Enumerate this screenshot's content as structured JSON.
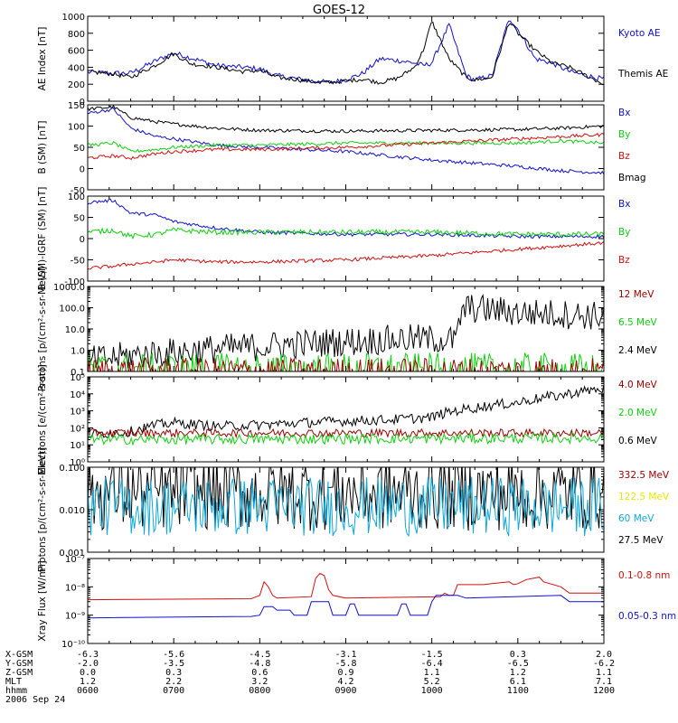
{
  "title": "GOES-12",
  "colors": {
    "black": "#000000",
    "blue": "#1010d0",
    "red": "#d01010",
    "green": "#10d010",
    "darkred": "#a00000",
    "cyan": "#10a8d8",
    "yellow": "#e8e800"
  },
  "chart_data": [
    {
      "type": "line",
      "ylabel": "AE Index [nT]",
      "scale": "linear",
      "ylim": [
        0,
        1000
      ],
      "ticks": [
        0,
        200,
        400,
        600,
        800,
        1000
      ],
      "tick_labels": [
        "0",
        "200",
        "400",
        "600",
        "800",
        "1000"
      ],
      "legend": [
        {
          "label": "Kyoto AE",
          "color": "#1010d0"
        },
        {
          "label": "Themis AE",
          "color": "#000000"
        }
      ],
      "series": [
        {
          "name": "Kyoto AE",
          "color": "#1010d0",
          "noise": 0.03,
          "x": [
            6.0,
            6.3,
            6.5,
            6.8,
            7.0,
            7.2,
            7.5,
            7.8,
            8.0,
            8.2,
            8.4,
            8.6,
            8.8,
            9.0,
            9.2,
            9.4,
            9.6,
            9.8,
            9.9,
            10.0,
            10.2,
            10.4,
            10.5,
            10.7,
            10.9,
            11.0,
            11.2,
            11.4,
            11.6,
            11.8,
            12.0
          ],
          "y": [
            340,
            330,
            330,
            480,
            570,
            510,
            420,
            400,
            380,
            300,
            270,
            240,
            220,
            250,
            330,
            500,
            480,
            450,
            420,
            450,
            900,
            300,
            250,
            300,
            980,
            850,
            500,
            450,
            350,
            300,
            260
          ]
        },
        {
          "name": "Themis AE",
          "color": "#000000",
          "noise": 0.025,
          "x": [
            6.0,
            6.3,
            6.5,
            6.8,
            7.0,
            7.2,
            7.5,
            7.8,
            8.0,
            8.2,
            8.4,
            8.6,
            8.8,
            9.0,
            9.2,
            9.4,
            9.6,
            9.8,
            9.9,
            10.0,
            10.2,
            10.4,
            10.5,
            10.7,
            10.9,
            11.0,
            11.2,
            11.4,
            11.6,
            11.8,
            12.0
          ],
          "y": [
            350,
            320,
            280,
            430,
            560,
            440,
            400,
            350,
            360,
            280,
            260,
            230,
            220,
            240,
            260,
            220,
            270,
            400,
            600,
            940,
            500,
            280,
            250,
            280,
            940,
            800,
            600,
            450,
            400,
            300,
            200
          ]
        }
      ]
    },
    {
      "type": "line",
      "ylabel": "B (SM) [nT]",
      "scale": "linear",
      "ylim": [
        -50,
        150
      ],
      "ticks": [
        -50,
        0,
        50,
        100,
        150
      ],
      "tick_labels": [
        "-50",
        "0",
        "50",
        "100",
        "150"
      ],
      "legend": [
        {
          "label": "Bx",
          "color": "#1010d0"
        },
        {
          "label": "By",
          "color": "#10d010"
        },
        {
          "label": "Bz",
          "color": "#d01010"
        },
        {
          "label": "Bmag",
          "color": "#000000"
        }
      ],
      "series": [
        {
          "name": "Bmag",
          "color": "#000000",
          "noise": 0.02,
          "x": [
            6.0,
            6.3,
            6.5,
            6.8,
            7.0,
            7.5,
            8.0,
            9.0,
            10.0,
            11.0,
            11.5,
            12.0
          ],
          "y": [
            140,
            145,
            120,
            110,
            105,
            95,
            90,
            88,
            90,
            92,
            95,
            100
          ]
        },
        {
          "name": "Bx",
          "color": "#1010d0",
          "noise": 0.02,
          "x": [
            6.0,
            6.3,
            6.5,
            6.8,
            7.0,
            7.5,
            8.0,
            9.0,
            10.0,
            11.0,
            11.5,
            12.0
          ],
          "y": [
            130,
            140,
            95,
            75,
            70,
            55,
            50,
            40,
            20,
            5,
            -5,
            -10
          ]
        },
        {
          "name": "By",
          "color": "#10d010",
          "noise": 0.02,
          "x": [
            6.0,
            6.3,
            6.5,
            6.8,
            7.0,
            7.5,
            8.0,
            9.0,
            10.0,
            11.0,
            11.5,
            12.0
          ],
          "y": [
            55,
            60,
            40,
            45,
            50,
            55,
            55,
            60,
            60,
            60,
            65,
            60
          ]
        },
        {
          "name": "Bz",
          "color": "#d01010",
          "noise": 0.02,
          "x": [
            6.0,
            6.3,
            6.5,
            6.8,
            7.0,
            7.5,
            8.0,
            9.0,
            10.0,
            11.0,
            11.5,
            12.0
          ],
          "y": [
            25,
            30,
            25,
            35,
            40,
            45,
            45,
            50,
            60,
            70,
            75,
            80
          ]
        }
      ]
    },
    {
      "type": "line",
      "ylabel": "B (SM)-IGRF (SM) [nT]",
      "scale": "linear",
      "ylim": [
        -100,
        100
      ],
      "ticks": [
        -100,
        -50,
        0,
        50,
        100
      ],
      "tick_labels": [
        "-100",
        "-50",
        "0",
        "50",
        "100"
      ],
      "legend": [
        {
          "label": "Bx",
          "color": "#1010d0"
        },
        {
          "label": "By",
          "color": "#10d010"
        },
        {
          "label": "Bz",
          "color": "#d01010"
        }
      ],
      "series": [
        {
          "name": "Bx",
          "color": "#1010d0",
          "noise": 0.02,
          "x": [
            6.0,
            6.3,
            6.5,
            6.8,
            7.0,
            7.5,
            8.0,
            9.0,
            10.0,
            11.0,
            12.0
          ],
          "y": [
            85,
            90,
            60,
            55,
            40,
            25,
            15,
            10,
            10,
            5,
            5
          ]
        },
        {
          "name": "By",
          "color": "#10d010",
          "noise": 0.03,
          "x": [
            6.0,
            6.3,
            6.5,
            6.8,
            7.0,
            7.5,
            8.0,
            9.0,
            10.0,
            11.0,
            12.0
          ],
          "y": [
            15,
            20,
            5,
            10,
            20,
            15,
            15,
            15,
            15,
            10,
            10
          ]
        },
        {
          "name": "Bz",
          "color": "#d01010",
          "noise": 0.02,
          "x": [
            6.0,
            6.3,
            6.5,
            6.8,
            7.0,
            7.5,
            8.0,
            9.0,
            10.0,
            11.0,
            12.0
          ],
          "y": [
            -70,
            -65,
            -60,
            -55,
            -50,
            -55,
            -55,
            -50,
            -40,
            -25,
            -10
          ]
        }
      ]
    },
    {
      "type": "line",
      "ylabel": "Protons [p/(cm²-s-sr-MeV)]",
      "scale": "log",
      "ylim": [
        0.1,
        1000
      ],
      "ticks": [
        0.1,
        1,
        10,
        100,
        1000
      ],
      "tick_labels": [
        "0.1",
        "1.0",
        "10.0",
        "100.0",
        "1000.0"
      ],
      "legend": [
        {
          "label": "12 MeV",
          "color": "#a00000"
        },
        {
          "label": "6.5 MeV",
          "color": "#10d010"
        },
        {
          "label": "2.4 MeV",
          "color": "#000000"
        }
      ],
      "series": [
        {
          "name": "2.4 MeV",
          "color": "#000000",
          "noise": 0.35,
          "x": [
            6.0,
            7.0,
            8.0,
            9.0,
            9.8,
            10.3,
            10.4,
            10.5,
            11.0,
            12.0
          ],
          "y": [
            0.3,
            0.8,
            1.5,
            2.5,
            3.5,
            3,
            100,
            90,
            60,
            40
          ]
        },
        {
          "name": "6.5 MeV",
          "color": "#10d010",
          "noise": 0.4,
          "x": [
            6.0,
            12.0
          ],
          "y": [
            0.12,
            0.12
          ]
        },
        {
          "name": "12 MeV",
          "color": "#a00000",
          "noise": 0.3,
          "x": [
            6.0,
            12.0
          ],
          "y": [
            0.11,
            0.11
          ]
        }
      ]
    },
    {
      "type": "line",
      "ylabel": "Electrons [e/(cm²-s-sr)]",
      "scale": "log",
      "ylim": [
        1,
        100000
      ],
      "ticks": [
        1,
        10,
        100,
        1000,
        10000,
        100000
      ],
      "tick_labels": [
        "10⁰",
        "10¹",
        "10²",
        "10³",
        "10⁴",
        "10⁵"
      ],
      "legend": [
        {
          "label": "4.0 MeV",
          "color": "#a00000"
        },
        {
          "label": "2.0 MeV",
          "color": "#10d010"
        },
        {
          "label": "0.6 MeV",
          "color": "#000000"
        }
      ],
      "series": [
        {
          "name": "0.6 MeV",
          "color": "#000000",
          "noise": 0.15,
          "x": [
            6.0,
            6.5,
            7.0,
            7.5,
            8.0,
            8.5,
            9.0,
            9.5,
            10.0,
            10.5,
            11.0,
            11.5,
            12.0
          ],
          "y": [
            40,
            60,
            200,
            120,
            150,
            200,
            250,
            300,
            400,
            1500,
            3000,
            8000,
            20000
          ]
        },
        {
          "name": "4.0 MeV",
          "color": "#a00000",
          "noise": 0.12,
          "x": [
            6.0,
            12.0
          ],
          "y": [
            50,
            50
          ]
        },
        {
          "name": "2.0 MeV",
          "color": "#10d010",
          "noise": 0.15,
          "x": [
            6.0,
            12.0
          ],
          "y": [
            20,
            25
          ]
        }
      ]
    },
    {
      "type": "line",
      "ylabel": "Protons [p/(cm²-s-sr-MeV)]",
      "scale": "log",
      "ylim": [
        0.001,
        0.1
      ],
      "ticks": [
        0.001,
        0.01,
        0.1
      ],
      "tick_labels": [
        "0.001",
        "0.010",
        "0.100"
      ],
      "legend": [
        {
          "label": "332.5 MeV",
          "color": "#a00000"
        },
        {
          "label": "122.5 MeV",
          "color": "#e8e800"
        },
        {
          "label": "60 MeV",
          "color": "#10a8d8"
        },
        {
          "label": "27.5 MeV",
          "color": "#000000"
        }
      ],
      "series": [
        {
          "name": "27.5 MeV",
          "color": "#000000",
          "noise": 0.45,
          "x": [
            6.0,
            12.0
          ],
          "y": [
            0.025,
            0.025
          ]
        },
        {
          "name": "60 MeV",
          "color": "#10a8d8",
          "noise": 0.35,
          "x": [
            6.0,
            12.0
          ],
          "y": [
            0.012,
            0.012
          ]
        }
      ]
    },
    {
      "type": "line",
      "ylabel": "Xray Flux [W/m²]",
      "scale": "log",
      "ylim": [
        1e-10,
        1e-07
      ],
      "ticks": [
        1e-10,
        1e-09,
        1e-08,
        1e-07
      ],
      "tick_labels": [
        "10⁻¹⁰",
        "10⁻⁹",
        "10⁻⁸",
        "10⁻⁷"
      ],
      "legend": [
        {
          "label": "0.1-0.8 nm",
          "color": "#d01010"
        },
        {
          "label": "0.05-0.3 nm",
          "color": "#1010d0"
        }
      ],
      "series": [
        {
          "name": "0.1-0.8 nm",
          "color": "#d01010",
          "noise": 0.0,
          "x": [
            6.0,
            7.9,
            8.0,
            8.05,
            8.1,
            8.15,
            8.2,
            8.6,
            8.65,
            8.7,
            8.75,
            8.8,
            8.85,
            9.0,
            10.1,
            10.15,
            10.2,
            10.25,
            10.3,
            10.6,
            10.7,
            10.9,
            10.95,
            11.0,
            11.1,
            11.25,
            11.3,
            11.5,
            11.6,
            12.0
          ],
          "y": [
            3.5e-09,
            3.8e-09,
            5e-09,
            1.5e-08,
            1e-08,
            5e-09,
            4e-09,
            4.5e-09,
            2e-08,
            3e-08,
            2.5e-08,
            8e-09,
            5e-09,
            4e-09,
            4.5e-09,
            6e-09,
            5e-09,
            5e-09,
            1.2e-08,
            1.2e-08,
            1.3e-08,
            1.5e-08,
            1.2e-08,
            1.3e-08,
            1.8e-08,
            2.2e-08,
            1.5e-08,
            1e-08,
            6e-09,
            6e-09
          ]
        },
        {
          "name": "0.05-0.3 nm",
          "color": "#1010d0",
          "noise": 0.0,
          "x": [
            6.0,
            7.9,
            8.0,
            8.05,
            8.15,
            8.2,
            8.35,
            8.4,
            8.55,
            8.6,
            8.8,
            8.85,
            9.0,
            9.05,
            9.1,
            9.15,
            9.2,
            9.6,
            9.65,
            9.7,
            9.75,
            9.8,
            9.95,
            10.0,
            10.05,
            10.1,
            10.3,
            10.4,
            11.5,
            11.6,
            12.0
          ],
          "y": [
            8e-10,
            9e-10,
            1e-09,
            2e-09,
            2e-09,
            1.5e-09,
            1.5e-09,
            1e-09,
            1e-09,
            3e-09,
            3e-09,
            1e-09,
            1e-09,
            2.5e-09,
            2.5e-09,
            1e-09,
            1e-09,
            1e-09,
            2.5e-09,
            2.5e-09,
            1e-09,
            1e-09,
            1e-09,
            3e-09,
            5e-09,
            5e-09,
            5e-09,
            4e-09,
            5e-09,
            3e-09,
            3e-09
          ]
        }
      ]
    }
  ],
  "x_axis": {
    "range_hours": [
      6,
      12
    ],
    "tick_hours": [
      6,
      7,
      8,
      9,
      10,
      11,
      12
    ],
    "minor_per_major": 4,
    "rows": [
      {
        "label": "X-GSM",
        "values": [
          "-6.3",
          "-5.6",
          "-4.5",
          "-3.1",
          "-1.5",
          "0.3",
          "2.0"
        ]
      },
      {
        "label": "Y-GSM",
        "values": [
          "-2.0",
          "-3.5",
          "-4.8",
          "-5.8",
          "-6.4",
          "-6.5",
          "-6.2"
        ]
      },
      {
        "label": "Z-GSM",
        "values": [
          "0.0",
          "0.3",
          "0.6",
          "0.9",
          "1.1",
          "1.2",
          "1.1"
        ]
      },
      {
        "label": "MLT",
        "values": [
          "1.2",
          "2.2",
          "3.2",
          "4.2",
          "5.2",
          "6.1",
          "7.1"
        ]
      },
      {
        "label": "hhmm",
        "values": [
          "0600",
          "0700",
          "0800",
          "0900",
          "1000",
          "1100",
          "1200"
        ]
      }
    ],
    "date": "2006 Sep 24"
  }
}
